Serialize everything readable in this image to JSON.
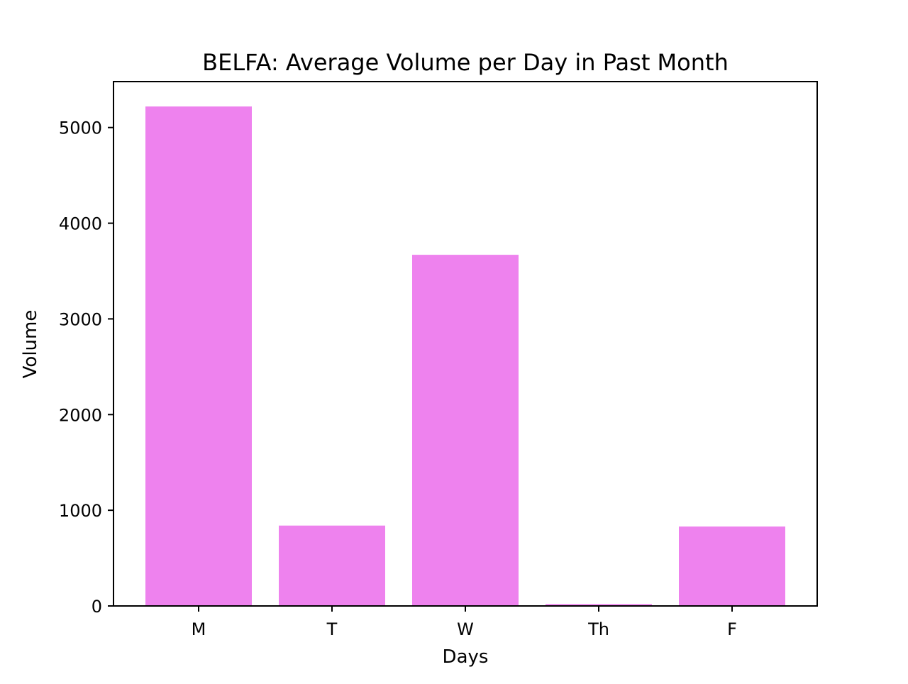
{
  "chart_data": {
    "type": "bar",
    "title": "BELFA: Average Volume per Day in Past Month",
    "xlabel": "Days",
    "ylabel": "Volume",
    "categories": [
      "M",
      "T",
      "W",
      "Th",
      "F"
    ],
    "values": [
      5220,
      840,
      3670,
      20,
      830
    ],
    "ylim": [
      0,
      5480
    ],
    "yticks": [
      0,
      1000,
      2000,
      3000,
      4000,
      5000
    ],
    "bar_color": "#ee82ee",
    "grid": false,
    "legend": "none"
  }
}
